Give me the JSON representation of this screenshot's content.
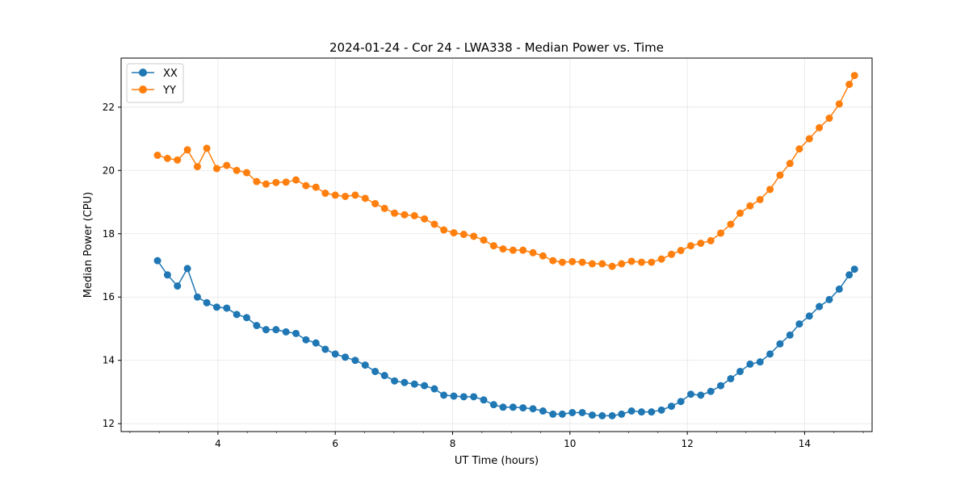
{
  "chart_data": {
    "type": "line",
    "title": "2024-01-24 - Cor 24 - LWA338 - Median Power vs. Time",
    "xlabel": "UT Time (hours)",
    "ylabel": "Median Power (CPU)",
    "xlim": [
      2.35,
      15.15
    ],
    "ylim": [
      11.75,
      23.55
    ],
    "xticks": [
      4,
      6,
      8,
      10,
      12,
      14
    ],
    "xtick_labels": [
      "4",
      "6",
      "8",
      "10",
      "12",
      "14"
    ],
    "yticks": [
      12,
      14,
      16,
      18,
      20,
      22
    ],
    "ytick_labels": [
      "12",
      "14",
      "16",
      "18",
      "20",
      "22"
    ],
    "grid": true,
    "legend_position": "upper-left",
    "x": [
      2.97,
      3.14,
      3.31,
      3.48,
      3.65,
      3.81,
      3.98,
      4.15,
      4.32,
      4.49,
      4.66,
      4.82,
      4.99,
      5.16,
      5.33,
      5.5,
      5.67,
      5.83,
      6.0,
      6.17,
      6.34,
      6.51,
      6.68,
      6.84,
      7.01,
      7.18,
      7.35,
      7.52,
      7.69,
      7.85,
      8.02,
      8.19,
      8.36,
      8.53,
      8.7,
      8.86,
      9.03,
      9.2,
      9.37,
      9.54,
      9.71,
      9.87,
      10.04,
      10.21,
      10.38,
      10.55,
      10.72,
      10.88,
      11.05,
      11.22,
      11.39,
      11.56,
      11.73,
      11.89,
      12.06,
      12.23,
      12.4,
      12.57,
      12.74,
      12.9,
      13.07,
      13.24,
      13.41,
      13.58,
      13.75,
      13.91,
      14.08,
      14.25,
      14.42,
      14.59,
      14.76,
      14.85
    ],
    "series": [
      {
        "name": "XX",
        "color": "#1f77b4",
        "values": [
          17.15,
          16.7,
          16.35,
          16.9,
          16.0,
          15.82,
          15.68,
          15.65,
          15.45,
          15.35,
          15.1,
          14.97,
          14.97,
          14.9,
          14.85,
          14.65,
          14.55,
          14.35,
          14.2,
          14.1,
          14.0,
          13.85,
          13.65,
          13.52,
          13.35,
          13.3,
          13.25,
          13.2,
          13.1,
          12.9,
          12.87,
          12.85,
          12.85,
          12.75,
          12.6,
          12.52,
          12.52,
          12.5,
          12.47,
          12.4,
          12.3,
          12.3,
          12.35,
          12.35,
          12.27,
          12.25,
          12.25,
          12.3,
          12.4,
          12.37,
          12.37,
          12.43,
          12.55,
          12.7,
          12.93,
          12.9,
          13.02,
          13.2,
          13.42,
          13.65,
          13.88,
          13.95,
          14.2,
          14.52,
          14.8,
          15.15,
          15.4,
          15.7,
          15.92,
          16.25,
          16.7,
          16.88
        ]
      },
      {
        "name": "YY",
        "color": "#ff7f0e",
        "values": [
          20.48,
          20.38,
          20.33,
          20.65,
          20.12,
          20.7,
          20.06,
          20.16,
          20.0,
          19.93,
          19.65,
          19.57,
          19.62,
          19.63,
          19.7,
          19.52,
          19.47,
          19.28,
          19.22,
          19.18,
          19.22,
          19.12,
          18.95,
          18.8,
          18.65,
          18.6,
          18.57,
          18.47,
          18.3,
          18.12,
          18.03,
          17.98,
          17.92,
          17.8,
          17.62,
          17.52,
          17.48,
          17.48,
          17.4,
          17.3,
          17.15,
          17.1,
          17.12,
          17.1,
          17.05,
          17.05,
          16.97,
          17.05,
          17.13,
          17.1,
          17.1,
          17.2,
          17.35,
          17.47,
          17.62,
          17.7,
          17.78,
          18.02,
          18.3,
          18.65,
          18.88,
          19.08,
          19.4,
          19.85,
          20.22,
          20.68,
          21.0,
          21.35,
          21.65,
          22.1,
          22.72,
          23.0
        ]
      }
    ]
  }
}
